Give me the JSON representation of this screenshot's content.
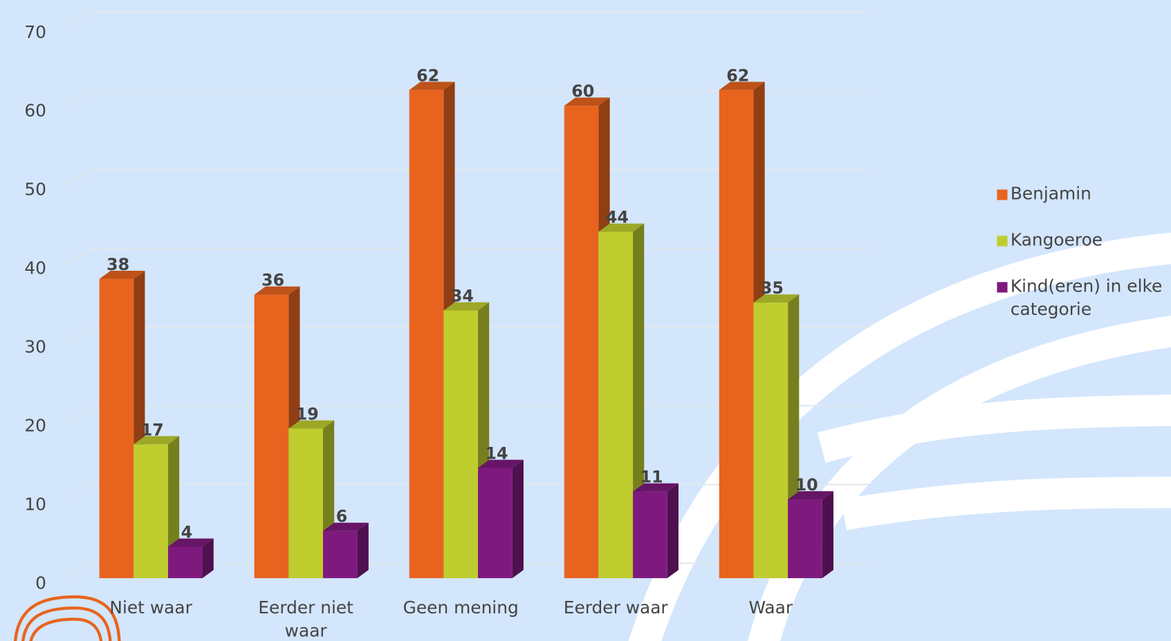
{
  "chart_data": {
    "type": "bar3d",
    "categories": [
      "Niet waar",
      "Eerder niet waar",
      "Geen mening",
      "Eerder waar",
      "Waar"
    ],
    "series": [
      {
        "name": "Benjamin",
        "color": "#e8641e",
        "values": [
          38,
          36,
          62,
          60,
          62
        ]
      },
      {
        "name": "Kangoeroe",
        "color": "#bfcd2f",
        "values": [
          17,
          19,
          34,
          44,
          35
        ]
      },
      {
        "name": "Kind(eren) in elke categorie",
        "color": "#7e1a7e",
        "values": [
          4,
          6,
          14,
          11,
          10
        ]
      }
    ],
    "ylim": [
      0,
      70
    ],
    "yticks": [
      0,
      10,
      20,
      30,
      40,
      50,
      60,
      70
    ],
    "grid": true,
    "legend": "right"
  }
}
